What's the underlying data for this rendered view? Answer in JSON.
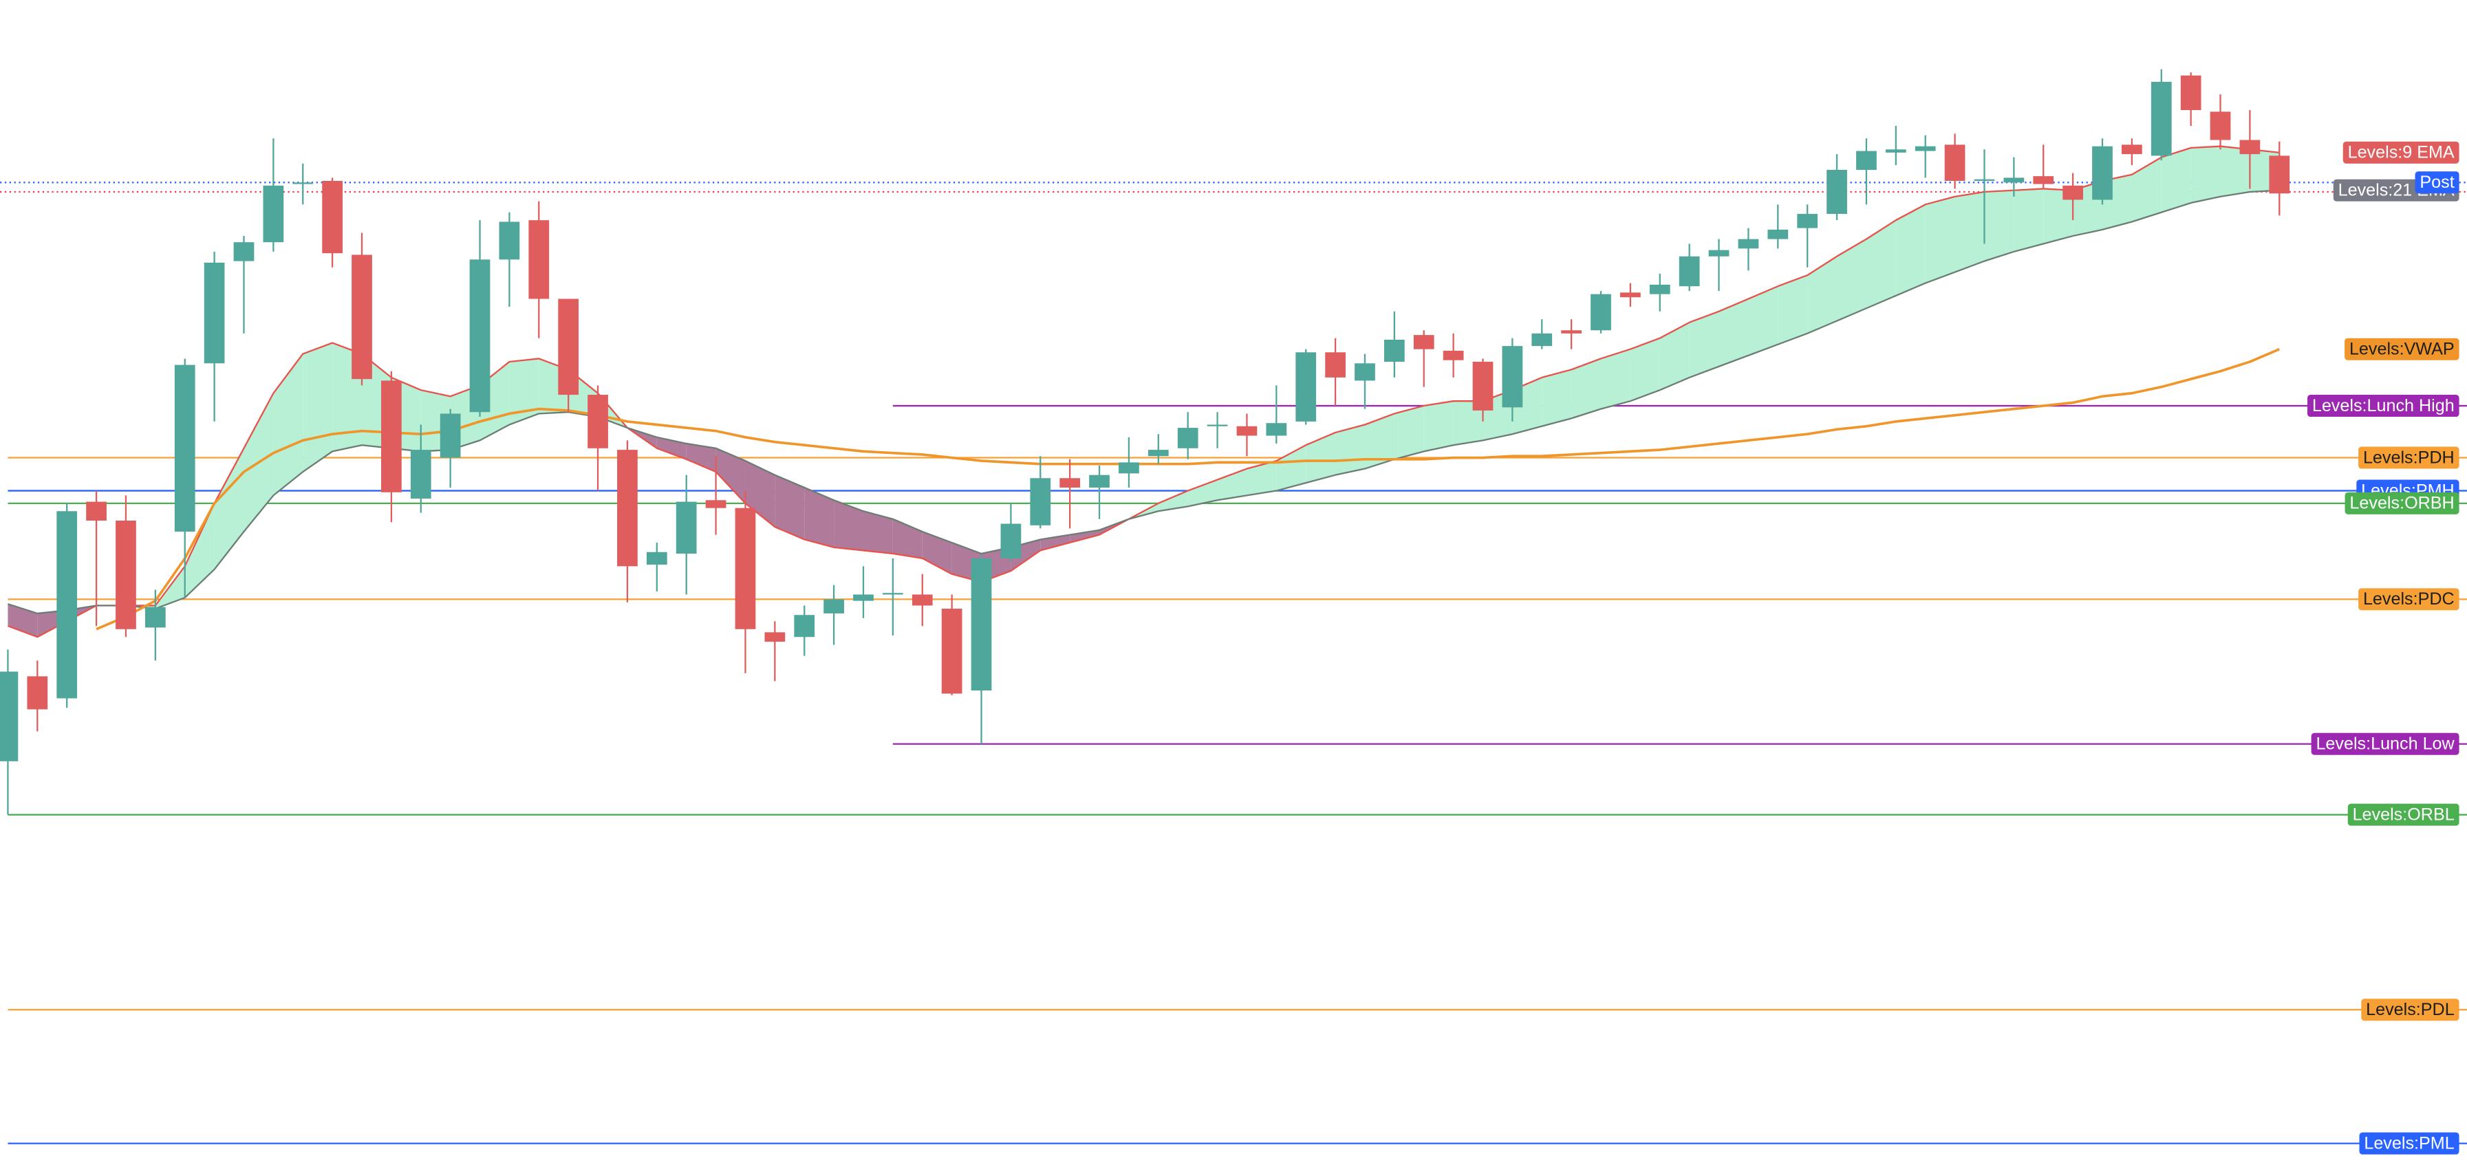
{
  "chart_data": {
    "type": "candlestick",
    "ylim": [
      0,
      748
    ],
    "up_color": "#4fa69a",
    "down_color": "#e05d5d",
    "cloud_colors": {
      "up": "#b7f0d4",
      "down": "#b07a9a"
    },
    "open": [
      264,
      318,
      304,
      429,
      417,
      349,
      410,
      517,
      582,
      594,
      631,
      633,
      586,
      506,
      431,
      457,
      486,
      583,
      608,
      558,
      497,
      462,
      389,
      396,
      430,
      425,
      346,
      343,
      358,
      366,
      370,
      370,
      361,
      309,
      393,
      414,
      444,
      438,
      447,
      458,
      463,
      477,
      477,
      471,
      480,
      524,
      506,
      518,
      535,
      525,
      518,
      489,
      528,
      538,
      538,
      562,
      561,
      566,
      585,
      590,
      596,
      603,
      612,
      640,
      651,
      652,
      656,
      633,
      632,
      636,
      630,
      621,
      656,
      649,
      700,
      677,
      659,
      649
    ],
    "high": [
      335,
      328,
      428,
      436,
      433,
      373,
      520,
      588,
      598,
      660,
      644,
      635,
      600,
      512,
      478,
      488,
      608,
      613,
      620,
      558,
      503,
      468,
      403,
      446,
      458,
      436,
      353,
      363,
      376,
      388,
      393,
      383,
      370,
      395,
      428,
      458,
      456,
      452,
      470,
      472,
      486,
      486,
      485,
      503,
      526,
      533,
      523,
      550,
      538,
      536,
      520,
      533,
      545,
      545,
      563,
      568,
      574,
      593,
      596,
      603,
      618,
      618,
      650,
      660,
      668,
      662,
      663,
      653,
      648,
      656,
      638,
      660,
      660,
      704,
      702,
      688,
      678,
      658
    ],
    "low": [
      230,
      283,
      298,
      350,
      343,
      328,
      368,
      480,
      536,
      588,
      618,
      578,
      503,
      416,
      422,
      438,
      483,
      553,
      533,
      486,
      436,
      365,
      372,
      370,
      408,
      320,
      315,
      331,
      338,
      355,
      344,
      350,
      306,
      275,
      391,
      412,
      412,
      418,
      438,
      453,
      456,
      463,
      458,
      466,
      478,
      490,
      488,
      508,
      502,
      508,
      480,
      480,
      526,
      526,
      536,
      553,
      550,
      563,
      563,
      576,
      590,
      578,
      608,
      618,
      643,
      635,
      628,
      593,
      623,
      628,
      608,
      618,
      643,
      646,
      668,
      653,
      628,
      611
    ],
    "close": [
      321,
      297,
      423,
      417,
      348,
      362,
      516,
      581,
      594,
      630,
      632,
      587,
      507,
      435,
      462,
      485,
      583,
      607,
      558,
      497,
      463,
      388,
      397,
      429,
      425,
      348,
      340,
      357,
      367,
      370,
      371,
      363,
      307,
      393,
      415,
      444,
      438,
      446,
      454,
      462,
      476,
      478,
      471,
      479,
      524,
      508,
      517,
      532,
      526,
      519,
      487,
      528,
      536,
      536,
      561,
      559,
      567,
      585,
      589,
      596,
      602,
      612,
      640,
      652,
      653,
      655,
      633,
      634,
      635,
      631,
      621,
      655,
      650,
      696,
      678,
      659,
      650,
      625
    ],
    "series": [
      {
        "name": "Levels:9 EMA",
        "color": "#e8524a",
        "tag_color": "#e05d5d",
        "text_color": "#ffffff",
        "width": 1,
        "values": [
          350,
          343,
          353,
          363,
          363,
          363,
          388,
          428,
          463,
          498,
          523,
          530,
          523,
          508,
          500,
          496,
          503,
          518,
          520,
          513,
          498,
          476,
          463,
          456,
          448,
          428,
          413,
          405,
          400,
          398,
          396,
          393,
          383,
          378,
          385,
          398,
          403,
          408,
          418,
          428,
          436,
          443,
          450,
          455,
          465,
          473,
          478,
          485,
          490,
          493,
          493,
          500,
          508,
          513,
          520,
          526,
          533,
          543,
          550,
          558,
          566,
          573,
          585,
          596,
          608,
          618,
          623,
          626,
          627,
          628,
          627,
          633,
          637,
          648,
          654,
          655,
          653,
          651
        ]
      },
      {
        "name": "Levels:21 EMA",
        "color": "#6b7d74",
        "tag_color": "#787b86",
        "text_color": "#ffffff",
        "width": 1,
        "values": [
          364,
          358,
          360,
          363,
          363,
          361,
          368,
          386,
          410,
          433,
          448,
          461,
          465,
          463,
          461,
          462,
          468,
          478,
          485,
          486,
          483,
          476,
          470,
          466,
          463,
          455,
          446,
          438,
          430,
          423,
          418,
          410,
          403,
          396,
          400,
          405,
          408,
          411,
          418,
          423,
          426,
          430,
          433,
          436,
          441,
          446,
          450,
          456,
          461,
          465,
          468,
          472,
          477,
          482,
          488,
          493,
          500,
          508,
          515,
          522,
          529,
          536,
          544,
          552,
          560,
          568,
          575,
          582,
          588,
          593,
          598,
          602,
          607,
          613,
          619,
          623,
          626,
          627
        ]
      },
      {
        "name": "Levels:VWAP",
        "color": "#f0952a",
        "tag_color": "#f0952a",
        "text_color": "#1e1e1e",
        "width": 1.6,
        "values": [
          null,
          null,
          null,
          348,
          356,
          366,
          393,
          428,
          448,
          460,
          468,
          472,
          474,
          473,
          472,
          474,
          480,
          485,
          488,
          487,
          484,
          480,
          478,
          476,
          474,
          470,
          467,
          465,
          463,
          461,
          460,
          459,
          457,
          455,
          454,
          453,
          453,
          453,
          453,
          453,
          453,
          454,
          454,
          454,
          455,
          455,
          456,
          456,
          456,
          457,
          457,
          458,
          458,
          459,
          460,
          461,
          462,
          464,
          466,
          468,
          470,
          472,
          475,
          477,
          480,
          482,
          484,
          486,
          488,
          490,
          492,
          496,
          498,
          502,
          507,
          512,
          518,
          526
        ]
      }
    ],
    "price_lines": [
      {
        "value": 626,
        "color": "#f23645"
      },
      {
        "name": "Post",
        "value": 632,
        "color": "#2962ff",
        "text_color": "#ffffff"
      }
    ],
    "levels": [
      {
        "name": "Levels:Lunch High",
        "value": 490,
        "color": "#9c27b0",
        "text_color": "#ffffff",
        "from": 30
      },
      {
        "name": "Levels:PDH",
        "value": 457,
        "color": "#f7a035",
        "text_color": "#1e1e1e",
        "from": 0
      },
      {
        "name": "Levels:PMH",
        "value": 436,
        "color": "#2962ff",
        "text_color": "#ffffff",
        "from": 0
      },
      {
        "name": "Levels:ORBH",
        "value": 428,
        "color": "#4caf50",
        "text_color": "#ffffff",
        "from": 0
      },
      {
        "name": "Levels:PDC",
        "value": 367,
        "color": "#f7a035",
        "text_color": "#1e1e1e",
        "from": 0
      },
      {
        "name": "Levels:Lunch Low",
        "value": 275,
        "color": "#9c27b0",
        "text_color": "#ffffff",
        "from": 30
      },
      {
        "name": "Levels:ORBL",
        "value": 230,
        "color": "#4caf50",
        "text_color": "#ffffff",
        "from": 0
      },
      {
        "name": "Levels:PDL",
        "value": 106,
        "color": "#f7a035",
        "text_color": "#1e1e1e",
        "from": 0
      },
      {
        "name": "Levels:PML",
        "value": 21,
        "color": "#2962ff",
        "text_color": "#ffffff",
        "from": 0
      }
    ]
  }
}
